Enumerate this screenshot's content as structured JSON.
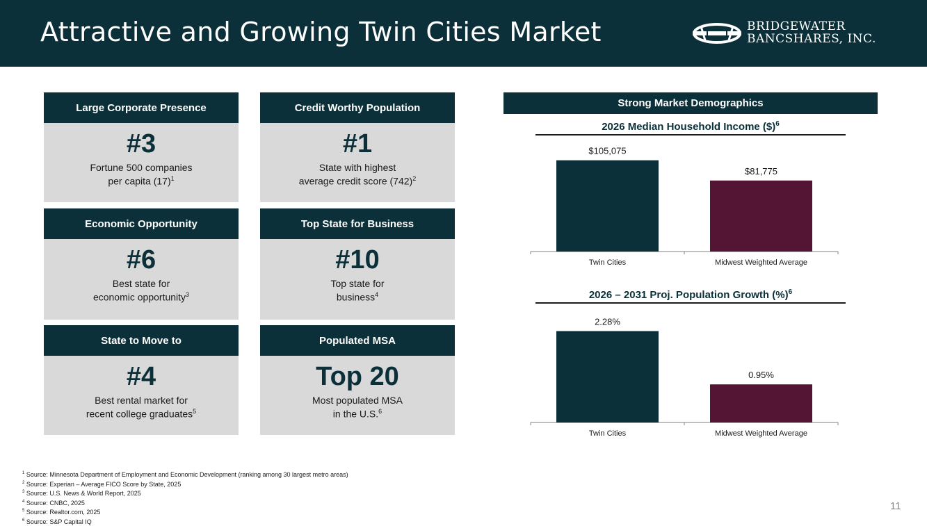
{
  "header": {
    "title": "Attractive and Growing Twin Cities Market",
    "logo_line1": "BRIDGEWATER",
    "logo_line2": "BANCSHARES, INC."
  },
  "cards": [
    {
      "heading": "Large Corporate Presence",
      "big": "#3",
      "line1": "Fortune 500 companies",
      "line2": "per capita (17)",
      "ref": "1"
    },
    {
      "heading": "Credit Worthy Population",
      "big": "#1",
      "line1": "State with highest",
      "line2": "average credit score (742)",
      "ref": "2"
    },
    {
      "heading": "Economic Opportunity",
      "big": "#6",
      "line1": "Best state for",
      "line2": "economic opportunity",
      "ref": "3"
    },
    {
      "heading": "Top State for Business",
      "big": "#10",
      "line1": "Top state for",
      "line2": "business",
      "ref": "4"
    },
    {
      "heading": "State to Move to",
      "big": "#4",
      "line1": "Best rental market for",
      "line2": "recent college graduates",
      "ref": "5"
    },
    {
      "heading": "Populated MSA",
      "big": "Top 20",
      "line1": "Most populated MSA",
      "line2": "in the U.S.",
      "ref": "6"
    }
  ],
  "demographics": {
    "title": "Strong Market Demographics"
  },
  "chart_data": [
    {
      "type": "bar",
      "title": "2026 Median Household Income ($)",
      "title_ref": "6",
      "categories": [
        "Twin Cities",
        "Midwest Weighted Average"
      ],
      "values": [
        105075,
        81775
      ],
      "labels": [
        "$105,075",
        "$81,775"
      ],
      "colors": [
        "#0b3039",
        "#541433"
      ],
      "ylim": [
        0,
        120000
      ]
    },
    {
      "type": "bar",
      "title": "2026 – 2031 Proj. Population Growth (%)",
      "title_ref": "6",
      "categories": [
        "Twin Cities",
        "Midwest Weighted Average"
      ],
      "values": [
        2.28,
        0.95
      ],
      "labels": [
        "2.28%",
        "0.95%"
      ],
      "colors": [
        "#0b3039",
        "#541433"
      ],
      "ylim": [
        0,
        2.6
      ]
    }
  ],
  "footnotes": [
    {
      "n": "1",
      "text": "Source: Minnesota Department of Employment and Economic Development (ranking among 30 largest metro areas)"
    },
    {
      "n": "2",
      "text": "Source: Experian – Average FICO Score by State, 2025"
    },
    {
      "n": "3",
      "text": "Source: U.S. News & World Report, 2025"
    },
    {
      "n": "4",
      "text": "Source: CNBC, 2025"
    },
    {
      "n": "5",
      "text": "Source: Realtor.com, 2025"
    },
    {
      "n": "6",
      "text": "Source: S&P Capital IQ"
    }
  ],
  "page_number": "11"
}
